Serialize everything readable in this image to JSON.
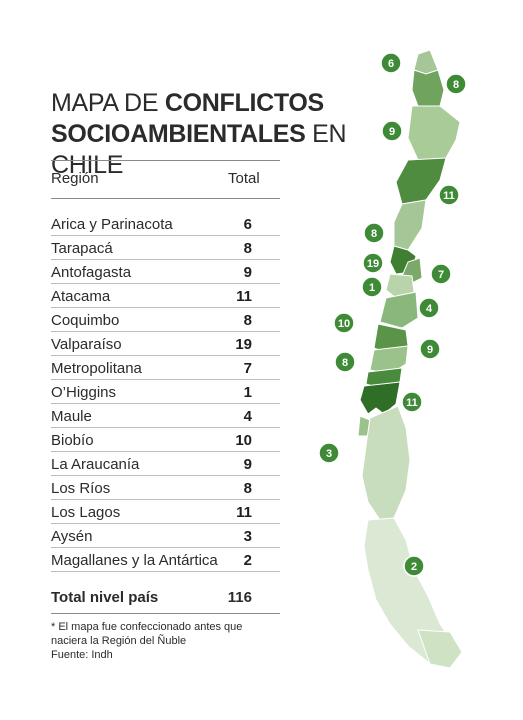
{
  "title": {
    "part1": "MAPA DE ",
    "part2": "CONFLICTOS",
    "part3": "SOCIOAMBIENTALES",
    "part4": " EN CHILE"
  },
  "table": {
    "header_region": "Región",
    "header_total": "Total",
    "rows": [
      {
        "region": "Arica y Parinacota",
        "total": "6"
      },
      {
        "region": "Tarapacá",
        "total": "8"
      },
      {
        "region": "Antofagasta",
        "total": "9"
      },
      {
        "region": "Atacama",
        "total": "11"
      },
      {
        "region": "Coquimbo",
        "total": "8"
      },
      {
        "region": "Valparaíso",
        "total": "19"
      },
      {
        "region": "Metropolitana",
        "total": "7"
      },
      {
        "region": "O’Higgins",
        "total": "1"
      },
      {
        "region": "Maule",
        "total": "4"
      },
      {
        "region": "Biobío",
        "total": "10"
      },
      {
        "region": "La Araucanía",
        "total": "9"
      },
      {
        "region": "Los Ríos",
        "total": "8"
      },
      {
        "region": "Los Lagos",
        "total": "11"
      },
      {
        "region": "Aysén",
        "total": "3"
      },
      {
        "region": "Magallanes y la Antártica",
        "total": "2"
      }
    ],
    "total_label": "Total nivel país",
    "total_value": "116"
  },
  "notes": {
    "line1": "* El mapa fue confeccionado antes que",
    "line2": "naciera la Región del Ñuble",
    "source": "Fuente: Indh"
  },
  "map": {
    "badge_color": "#3f8a36",
    "badges": [
      "6",
      "8",
      "9",
      "11",
      "8",
      "19",
      "1",
      "7",
      "4",
      "10",
      "9",
      "8",
      "11",
      "3",
      "2"
    ]
  }
}
